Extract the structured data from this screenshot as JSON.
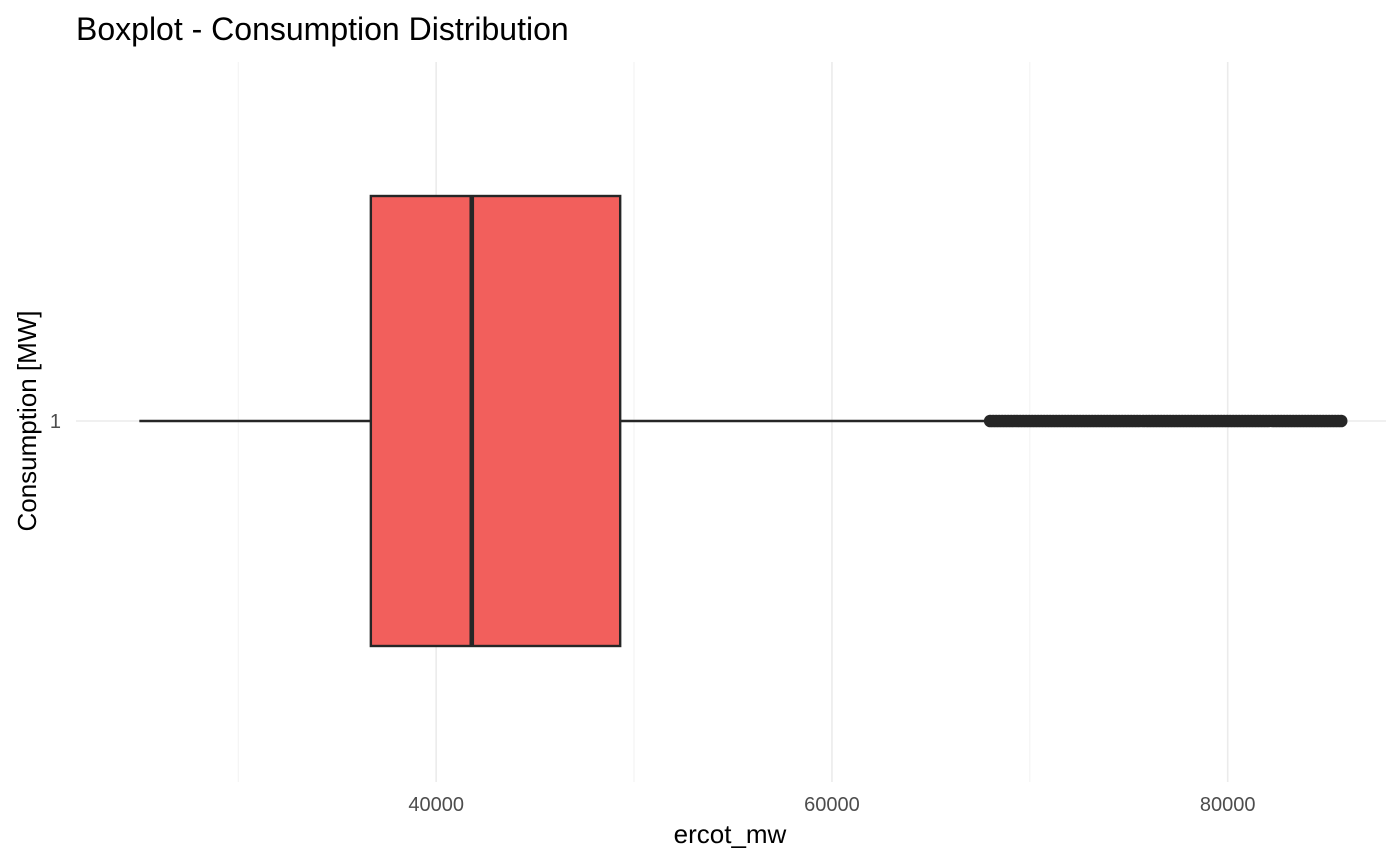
{
  "chart_data": {
    "type": "boxplot",
    "title": "Boxplot - Consumption Distribution",
    "xlabel": "ercot_mw",
    "ylabel": "Consumption [MW]",
    "orientation": "horizontal",
    "xlim": [
      21800,
      88000
    ],
    "x_ticks": [
      40000,
      60000,
      80000
    ],
    "x_tick_labels": [
      "40000",
      "60000",
      "80000"
    ],
    "y_categories": [
      "1"
    ],
    "grid": "major and minor vertical",
    "box": {
      "category": "1",
      "whisker_low": 25000,
      "q1": 36700,
      "median": 41800,
      "q3": 49300,
      "whisker_high": 68000,
      "outliers_from": 68000,
      "outliers_to": 85800,
      "fill": "#F25F5C",
      "stroke": "#262626"
    }
  }
}
